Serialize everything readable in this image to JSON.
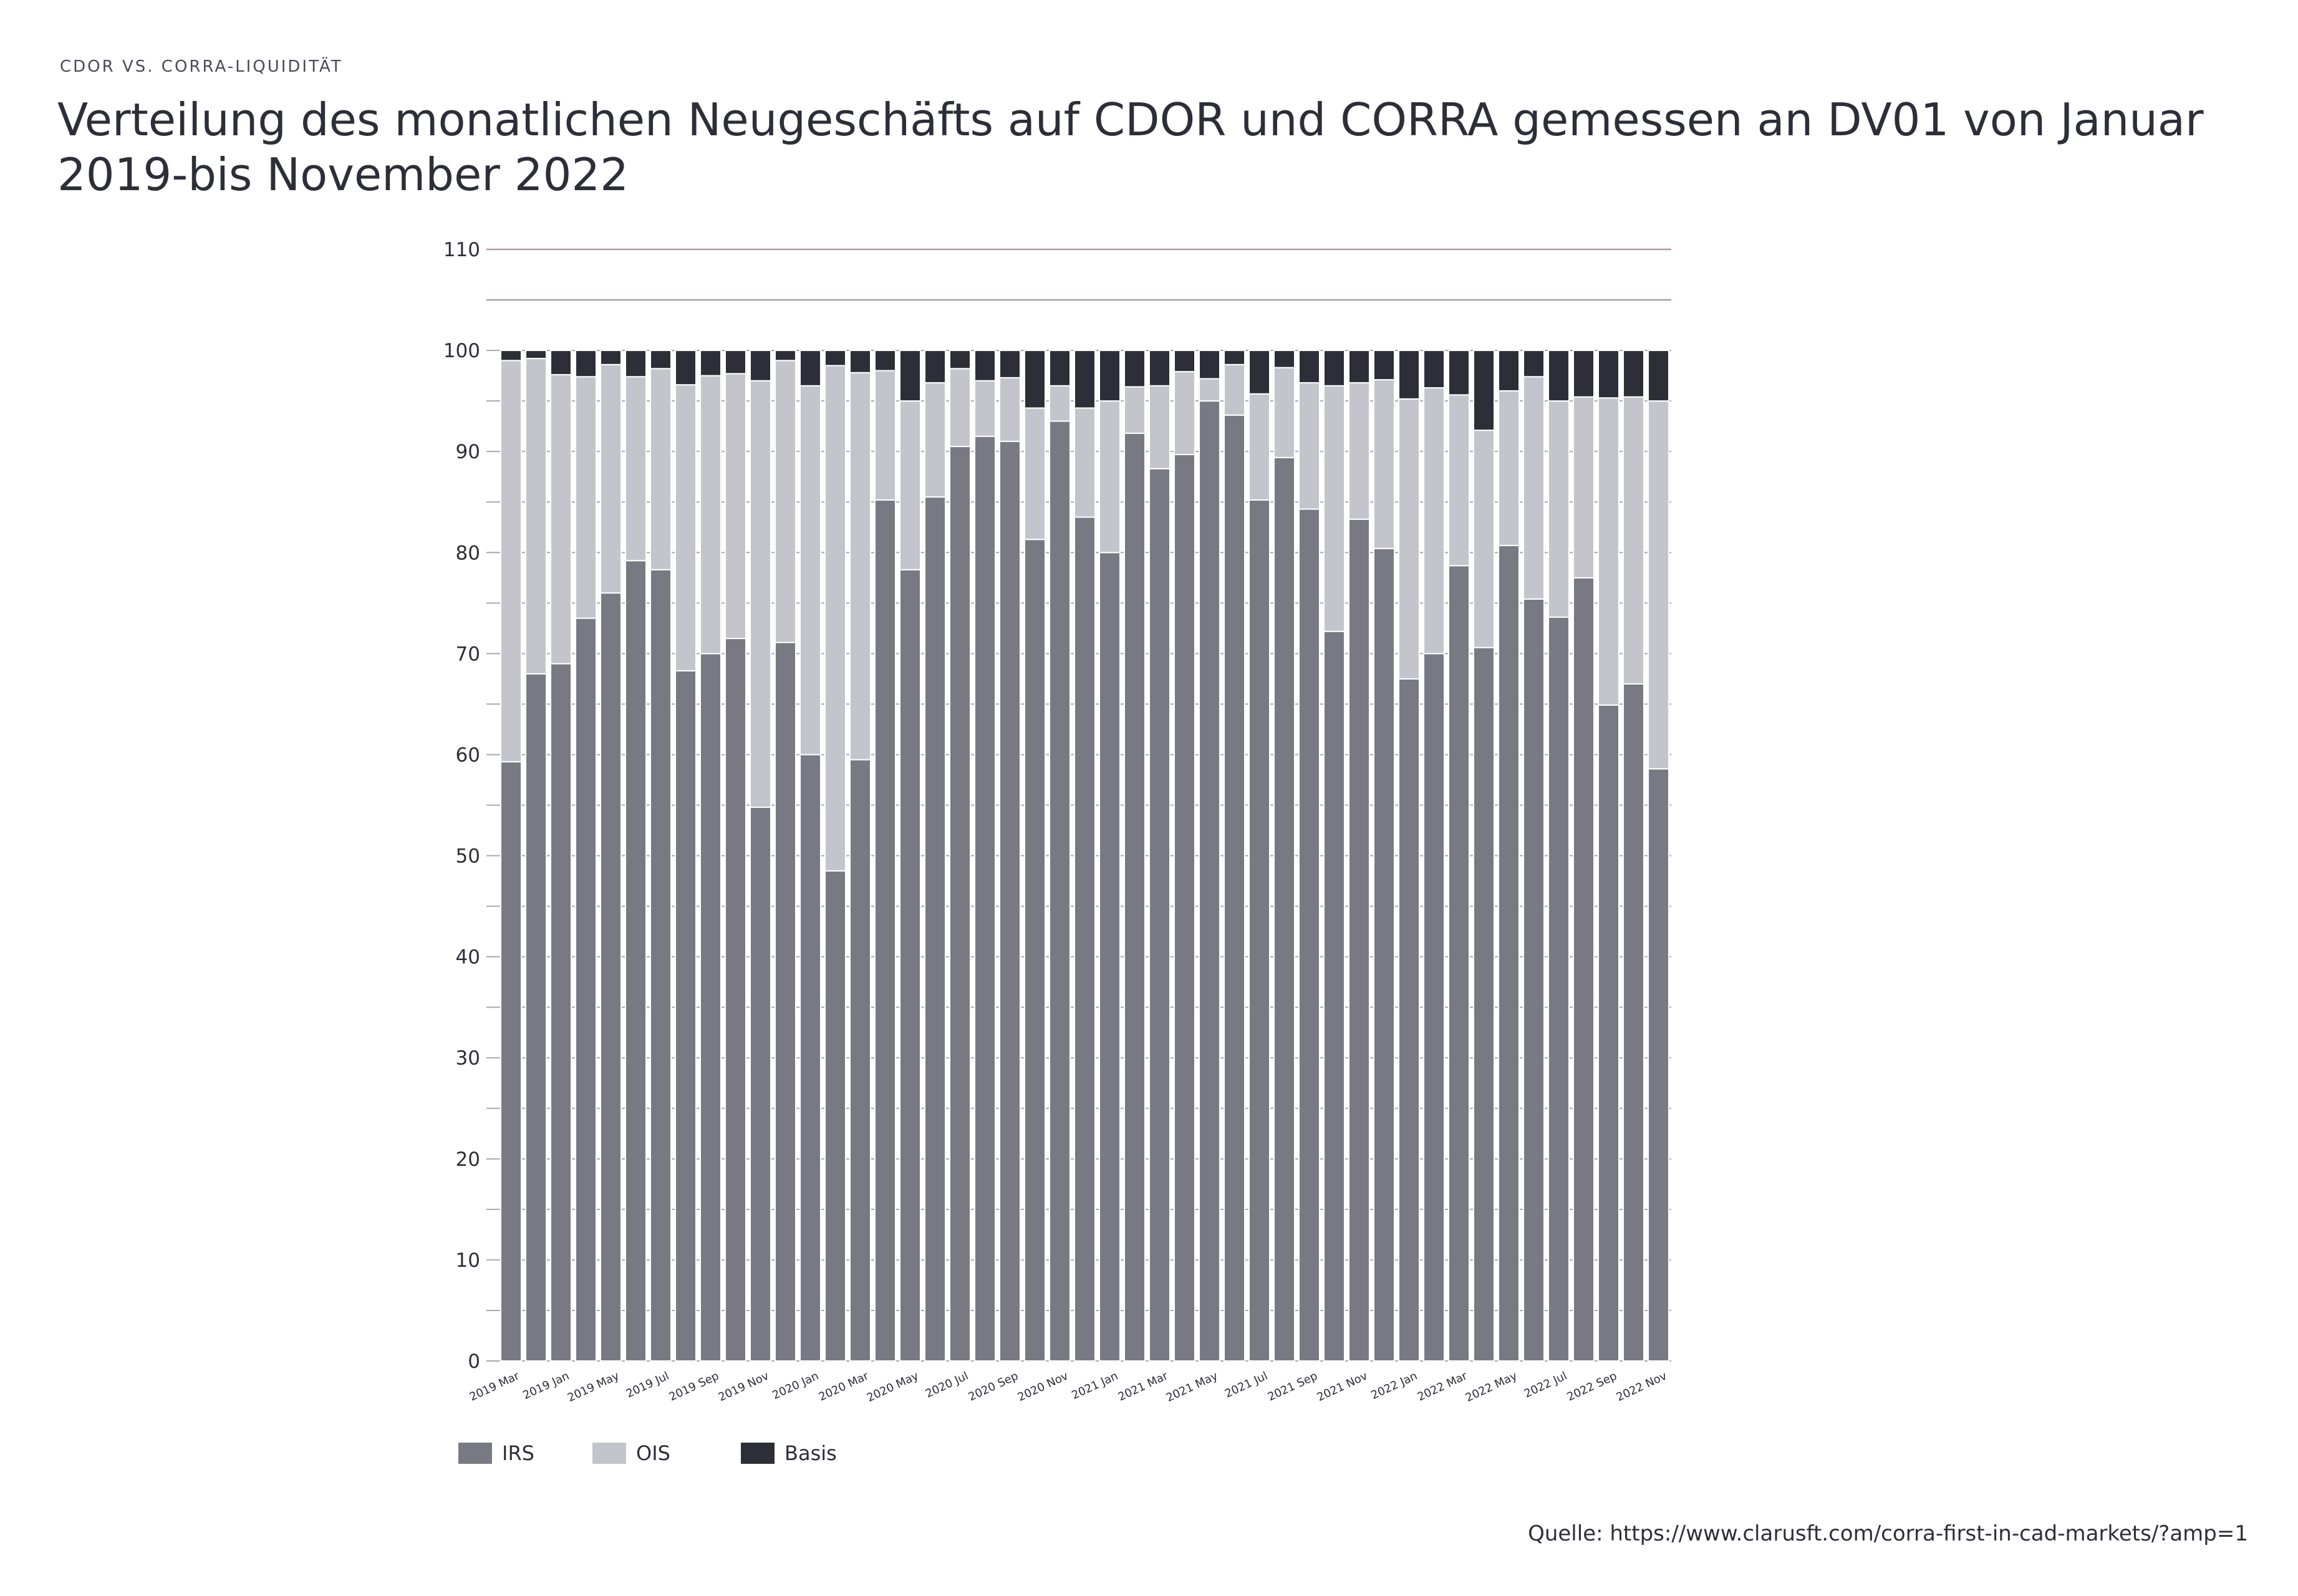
{
  "header": {
    "kicker": "CDOR VS. CORRA-LIQUIDITÄT",
    "title": "Verteilung des monatlichen Neugeschäfts auf CDOR und CORRA gemessen an DV01 von Januar 2019-bis November 2022"
  },
  "footer": {
    "source": "Quelle: https://www.clarusft.com/corra-first-in-cad-markets/?amp=1"
  },
  "colors": {
    "irs": "#797983",
    "ois": "#c4c4cd",
    "basis": "#2e2e38",
    "reference_line": "#b09aa0"
  },
  "legend": [
    {
      "name": "IRS",
      "color": "#797983"
    },
    {
      "name": "OIS",
      "color": "#c4c4cd"
    },
    {
      "name": "Basis",
      "color": "#2e2e38"
    }
  ],
  "chart_data": {
    "type": "bar",
    "stacked": true,
    "ylim": [
      0,
      110
    ],
    "yticks": [
      0,
      10,
      20,
      30,
      40,
      50,
      60,
      70,
      80,
      90,
      100,
      110
    ],
    "reference_lines": [
      110,
      105
    ],
    "grid": true,
    "legend_position": "bottom-left",
    "xtick_labels": [
      "2019 Mar",
      "2019 Jan",
      "2019 May",
      "2019 Jul",
      "2019 Sep",
      "2019 Nov",
      "2020 Jan",
      "2020 Mar",
      "2020 May",
      "2020 Jul",
      "2020 Sep",
      "2020 Nov",
      "2021 Jan",
      "2021 Mar",
      "2021 May",
      "2021 Jul",
      "2021 Sep",
      "2021 Nov",
      "2022 Jan",
      "2022 Mar",
      "2022 May",
      "2022 Jul",
      "2022 Sep",
      "2022 Nov"
    ],
    "series": [
      {
        "name": "IRS",
        "values": [
          59.3,
          68,
          69,
          73.5,
          76,
          79.2,
          78.3,
          68.3,
          70,
          71.5,
          54.8,
          71.1,
          60,
          48.5,
          59.5,
          85.2,
          78.3,
          85.5,
          90.5,
          91.5,
          91,
          81.3,
          93,
          83.5,
          80,
          91.8,
          88.3,
          89.7,
          95,
          93.6,
          85.2,
          89.4,
          84.3,
          72.2,
          83.3,
          80.4,
          67.5,
          70,
          78.7,
          70.6,
          80.7,
          75.4,
          73.6,
          77.5,
          64.9,
          67,
          58.6
        ]
      },
      {
        "name": "OIS",
        "values": [
          39.7,
          31.2,
          28.6,
          23.9,
          22.6,
          18.2,
          19.9,
          28.3,
          27.5,
          26.2,
          42.2,
          27.9,
          36.5,
          50,
          38.3,
          12.8,
          16.7,
          11.3,
          7.7,
          5.5,
          6.3,
          13,
          3.5,
          10.8,
          15,
          4.6,
          8.2,
          8.2,
          2.2,
          5,
          10.5,
          8.9,
          12.5,
          24.3,
          13.5,
          16.7,
          27.7,
          26.3,
          16.9,
          21.5,
          15.3,
          22,
          21.4,
          17.9,
          30.4,
          28.4,
          36.4
        ]
      },
      {
        "name": "Basis",
        "values": [
          1,
          0.8,
          2.4,
          2.6,
          1.4,
          2.6,
          1.8,
          3.4,
          2.5,
          2.3,
          3,
          1,
          3.5,
          1.5,
          2.2,
          2,
          5,
          3.2,
          1.8,
          3,
          2.7,
          5.7,
          3.5,
          5.7,
          5,
          3.6,
          3.5,
          2.1,
          2.8,
          1.4,
          4.3,
          1.7,
          3.2,
          3.5,
          3.2,
          2.9,
          4.8,
          3.7,
          4.4,
          7.9,
          4,
          2.6,
          5,
          4.6,
          4.7,
          4.6,
          5
        ]
      }
    ]
  }
}
